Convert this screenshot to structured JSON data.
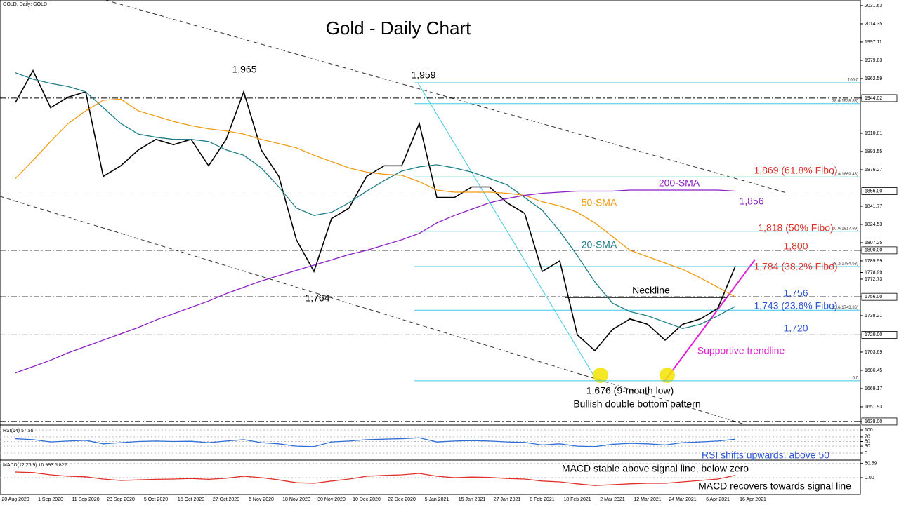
{
  "header": "GOLD, Daily: GOLD",
  "chart_data": [
    {
      "type": "line",
      "title": "Gold - Daily Chart",
      "categories": [
        "20 Aug 2020",
        null,
        "1 Sep 2020",
        null,
        "11 Sep 2020",
        null,
        "23 Sep 2020",
        null,
        "5 Oct 2020",
        null,
        "15 Oct 2020",
        null,
        "27 Oct 2020",
        null,
        "6 Nov 2020",
        null,
        "18 Nov 2020",
        null,
        "30 Nov 2020",
        null,
        "10 Dec 2020",
        null,
        "22 Dec 2020",
        null,
        "5 Jan 2021",
        null,
        "15 Jan 2021",
        null,
        "27 Jan 2021",
        null,
        "8 Feb 2021",
        null,
        "18 Feb 2021",
        null,
        "2 Mar 2021",
        null,
        "12 Mar 2021",
        null,
        "24 Mar 2021",
        null,
        "6 Apr 2021",
        null,
        "16 Apr 2021"
      ],
      "ylim": [
        1635.3,
        2036.9
      ],
      "yticks": [
        2031.63,
        2014.35,
        1997.11,
        1979.83,
        1962.59,
        1944.02,
        1910.81,
        1893.55,
        1876.27,
        {
          "value": 1856,
          "label": "1856.00"
        },
        1841.77,
        1824.53,
        1807.25,
        {
          "value": 1800,
          "label": "1800.00"
        },
        1789.99,
        1778.99,
        1772.73,
        {
          "value": 1756,
          "label": "1756.00"
        },
        1738.21,
        {
          "value": 1720,
          "label": "1720.00"
        },
        1703.69,
        1686.45,
        1669.17,
        1651.93,
        {
          "value": 1638,
          "label": "1638.00"
        }
      ],
      "levels": [
        1944.02,
        1856,
        1800,
        1756,
        1720,
        1638
      ],
      "series": [
        {
          "color": "#000000",
          "values": [
            1940,
            1970,
            1935,
            1945,
            1950,
            1870,
            1880,
            1895,
            1905,
            1900,
            1905,
            1880,
            1905,
            1950,
            1895,
            1870,
            1810,
            1780,
            1830,
            1840,
            1870,
            1880,
            1880,
            1920,
            1850,
            1850,
            1860,
            1860,
            1845,
            1835,
            1780,
            1790,
            1720,
            1705,
            1725,
            1735,
            1730,
            1715,
            1730,
            1735,
            1745,
            1785,
            null
          ]
        },
        {
          "name": "20-SMA",
          "color": "#1c7f87",
          "values": [
            1968,
            1962,
            1958,
            1955,
            1950,
            1935,
            1920,
            1910,
            1907,
            1905,
            1905,
            1903,
            1895,
            1890,
            1878,
            1860,
            1840,
            1833,
            1836,
            1845,
            1856,
            1866,
            1875,
            1879,
            1881,
            1878,
            1874,
            1868,
            1862,
            1850,
            1838,
            1818,
            1795,
            1770,
            1750,
            1742,
            1738,
            1732,
            1726,
            1730,
            1738,
            1747,
            null
          ]
        },
        {
          "name": "50-SMA",
          "color": "#f29b12",
          "values": [
            1868,
            1885,
            1903,
            1920,
            1932,
            1942,
            1943,
            1932,
            1927,
            1922,
            1918,
            1915,
            1913,
            1910,
            1905,
            1901,
            1897,
            1890,
            1884,
            1878,
            1874,
            1872,
            1871,
            1865,
            1857,
            1855,
            1855,
            1855,
            1854,
            1852,
            1846,
            1842,
            1836,
            1826,
            1813,
            1800,
            1794,
            1788,
            1782,
            1774,
            1765,
            1756,
            null
          ]
        },
        {
          "name": "200-SMA",
          "color": "#8a1fc4",
          "values": [
            1684,
            1690,
            1696,
            1703,
            1709,
            1715,
            1721,
            1727,
            1734,
            1740,
            1746,
            1752,
            1759,
            1765,
            1771,
            1776,
            1781,
            1786,
            1791,
            1796,
            1800,
            1805,
            1810,
            1816,
            1826,
            1833,
            1839,
            1845,
            1849,
            1852,
            1854,
            1855,
            1856,
            1856,
            1856,
            1857,
            1857,
            1857,
            1857,
            1857,
            1857,
            1856,
            null
          ]
        }
      ],
      "fibo": {
        "color": "#3fc9e0",
        "levels": [
          {
            "label": "100.0",
            "value": 1958.6
          },
          {
            "label": "78.6(1938.83)",
            "value": 1938.83
          },
          {
            "label": "61.8(1869.43)",
            "value": 1869.43
          },
          {
            "label": "50.0(1817.99)",
            "value": 1817.99
          },
          {
            "label": "38.2(1784.63)",
            "value": 1784.63
          },
          {
            "label": "23.6(1743.36)",
            "value": 1743.36
          },
          {
            "label": "0.0",
            "value": 1676.5
          }
        ]
      },
      "annotations": [
        {
          "text": "1,965",
          "color": "#000000"
        },
        {
          "text": "1,959",
          "color": "#000000"
        },
        {
          "text": "1,764",
          "color": "#000000"
        },
        {
          "text": "1,676 (9-month low)",
          "color": "#000000"
        },
        {
          "text": "Bullish double bottom pattern",
          "color": "#000000"
        },
        {
          "text": "Neckline",
          "color": "#000000"
        },
        {
          "text": "200-SMA",
          "color": "#8a1fc4"
        },
        {
          "text": "50-SMA",
          "color": "#f29b12"
        },
        {
          "text": "20-SMA",
          "color": "#1c7f87"
        },
        {
          "text": "1,869 (61.8% Fibo)",
          "color": "#e0302a"
        },
        {
          "text": "1,856",
          "color": "#8a1fc4"
        },
        {
          "text": "1,818 (50% Fibo)",
          "color": "#e0302a"
        },
        {
          "text": "1,800",
          "color": "#e0302a"
        },
        {
          "text": "1,784 (38.2% Fibo)",
          "color": "#e0302a"
        },
        {
          "text": "1,756",
          "color": "#2a55d6"
        },
        {
          "text": "1,743 (23.6% Fibo)",
          "color": "#2a55d6"
        },
        {
          "text": "1,720",
          "color": "#2a55d6"
        },
        {
          "text": "Supportive trendline",
          "color": "#e020d0"
        }
      ]
    },
    {
      "type": "line",
      "title": "RSI(14) 57.58",
      "ylim": [
        0,
        100
      ],
      "yticks": [
        0,
        30,
        50,
        70,
        100
      ],
      "series": [
        {
          "color": "#2f6fd6",
          "values": [
            62,
            58,
            48,
            52,
            55,
            40,
            45,
            50,
            52,
            50,
            51,
            45,
            52,
            58,
            45,
            40,
            30,
            28,
            48,
            52,
            58,
            60,
            62,
            66,
            48,
            52,
            54,
            52,
            48,
            46,
            35,
            40,
            30,
            28,
            38,
            42,
            40,
            35,
            45,
            48,
            52,
            60,
            null
          ]
        }
      ],
      "annotations": [
        {
          "text": "RSI shifts upwards, above 50",
          "color": "#2a55d6"
        }
      ]
    },
    {
      "type": "line",
      "title": "MACD(12,26,9) 10.993 5.822",
      "ylim": [
        -60,
        60
      ],
      "yticks": [
        {
          "value": 0,
          "label": "0.00"
        },
        50.59
      ],
      "series": [
        {
          "color": "#e0302a",
          "values": [
            20,
            18,
            10,
            5,
            3,
            -5,
            -10,
            -8,
            -6,
            -5,
            -3,
            -6,
            -2,
            5,
            0,
            -8,
            -18,
            -20,
            -12,
            -5,
            5,
            8,
            10,
            15,
            5,
            0,
            2,
            1,
            -3,
            -5,
            -12,
            -15,
            -22,
            -28,
            -25,
            -22,
            -20,
            -20,
            -15,
            -10,
            -5,
            8,
            null
          ]
        }
      ],
      "annotations": [
        {
          "text": "MACD stable above signal line, below zero",
          "color": "#000000"
        },
        {
          "text": "MACD recovers towards signal line",
          "color": "#000000"
        }
      ]
    }
  ]
}
